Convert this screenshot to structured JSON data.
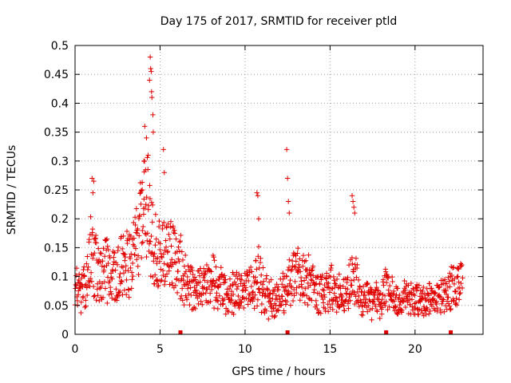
{
  "chart_data": {
    "type": "scatter",
    "title": "Day 175 of 2017, SRMTID for receiver ptld",
    "xlabel": "GPS time / hours",
    "ylabel": "SRMTID / TECUs",
    "xlim": [
      0,
      24
    ],
    "ylim": [
      0,
      0.5
    ],
    "x_ticks": [
      0,
      5,
      10,
      15,
      20
    ],
    "x_tick_labels": [
      "0",
      "5",
      "10",
      "15",
      "20"
    ],
    "y_ticks": [
      0,
      0.05,
      0.1,
      0.15,
      0.2,
      0.25,
      0.3,
      0.35,
      0.4,
      0.45,
      0.5
    ],
    "y_tick_labels": [
      "0",
      "0.05",
      "0.1",
      "0.15",
      "0.2",
      "0.25",
      "0.3",
      "0.35",
      "0.4",
      "0.45",
      "0.5"
    ],
    "grid": true,
    "marker": "plus",
    "color": "#e00000",
    "series": [
      {
        "name": "SRMTID",
        "profile": [
          [
            0.0,
            0.11
          ],
          [
            0.3,
            0.07
          ],
          [
            0.6,
            0.08
          ],
          [
            0.9,
            0.14
          ],
          [
            1.2,
            0.12
          ],
          [
            1.5,
            0.1
          ],
          [
            1.8,
            0.12
          ],
          [
            2.1,
            0.09
          ],
          [
            2.4,
            0.1
          ],
          [
            2.7,
            0.12
          ],
          [
            3.0,
            0.13
          ],
          [
            3.3,
            0.12
          ],
          [
            3.6,
            0.16
          ],
          [
            3.9,
            0.19
          ],
          [
            4.2,
            0.22
          ],
          [
            4.5,
            0.17
          ],
          [
            4.8,
            0.13
          ],
          [
            5.1,
            0.14
          ],
          [
            5.4,
            0.15
          ],
          [
            5.7,
            0.14
          ],
          [
            6.0,
            0.13
          ],
          [
            6.3,
            0.11
          ],
          [
            6.6,
            0.09
          ],
          [
            6.9,
            0.08
          ],
          [
            7.2,
            0.08
          ],
          [
            7.5,
            0.08
          ],
          [
            7.8,
            0.08
          ],
          [
            8.1,
            0.09
          ],
          [
            8.4,
            0.08
          ],
          [
            8.7,
            0.08
          ],
          [
            9.0,
            0.07
          ],
          [
            9.3,
            0.07
          ],
          [
            9.6,
            0.07
          ],
          [
            9.9,
            0.08
          ],
          [
            10.2,
            0.08
          ],
          [
            10.5,
            0.09
          ],
          [
            10.8,
            0.1
          ],
          [
            11.1,
            0.07
          ],
          [
            11.4,
            0.06
          ],
          [
            11.7,
            0.06
          ],
          [
            12.0,
            0.06
          ],
          [
            12.3,
            0.07
          ],
          [
            12.6,
            0.1
          ],
          [
            12.9,
            0.1
          ],
          [
            13.2,
            0.1
          ],
          [
            13.5,
            0.1
          ],
          [
            13.8,
            0.1
          ],
          [
            14.1,
            0.08
          ],
          [
            14.4,
            0.07
          ],
          [
            14.7,
            0.07
          ],
          [
            15.0,
            0.08
          ],
          [
            15.3,
            0.07
          ],
          [
            15.6,
            0.07
          ],
          [
            15.9,
            0.07
          ],
          [
            16.2,
            0.1
          ],
          [
            16.5,
            0.1
          ],
          [
            16.8,
            0.06
          ],
          [
            17.1,
            0.06
          ],
          [
            17.4,
            0.06
          ],
          [
            17.7,
            0.06
          ],
          [
            18.0,
            0.06
          ],
          [
            18.3,
            0.08
          ],
          [
            18.6,
            0.07
          ],
          [
            18.9,
            0.06
          ],
          [
            19.2,
            0.06
          ],
          [
            19.5,
            0.06
          ],
          [
            19.8,
            0.06
          ],
          [
            20.1,
            0.06
          ],
          [
            20.4,
            0.06
          ],
          [
            20.7,
            0.06
          ],
          [
            21.0,
            0.06
          ],
          [
            21.3,
            0.06
          ],
          [
            21.6,
            0.07
          ],
          [
            21.9,
            0.06
          ],
          [
            22.2,
            0.09
          ],
          [
            22.5,
            0.08
          ],
          [
            22.8,
            0.1
          ]
        ],
        "spikes": [
          [
            1.0,
            0.27
          ],
          [
            1.05,
            0.245
          ],
          [
            1.1,
            0.265
          ],
          [
            3.95,
            0.25
          ],
          [
            4.05,
            0.3
          ],
          [
            4.1,
            0.36
          ],
          [
            4.2,
            0.34
          ],
          [
            4.3,
            0.31
          ],
          [
            4.38,
            0.44
          ],
          [
            4.42,
            0.48
          ],
          [
            4.45,
            0.46
          ],
          [
            4.48,
            0.455
          ],
          [
            4.5,
            0.42
          ],
          [
            4.52,
            0.41
          ],
          [
            4.58,
            0.38
          ],
          [
            4.6,
            0.35
          ],
          [
            5.2,
            0.32
          ],
          [
            5.25,
            0.28
          ],
          [
            10.7,
            0.245
          ],
          [
            10.75,
            0.24
          ],
          [
            10.8,
            0.2
          ],
          [
            12.45,
            0.32
          ],
          [
            12.5,
            0.27
          ],
          [
            12.55,
            0.23
          ],
          [
            12.6,
            0.21
          ],
          [
            16.3,
            0.24
          ],
          [
            16.35,
            0.23
          ],
          [
            16.4,
            0.22
          ],
          [
            16.45,
            0.21
          ]
        ]
      }
    ],
    "gap_markers_x": [
      6.2,
      12.5,
      18.3,
      22.1
    ]
  }
}
